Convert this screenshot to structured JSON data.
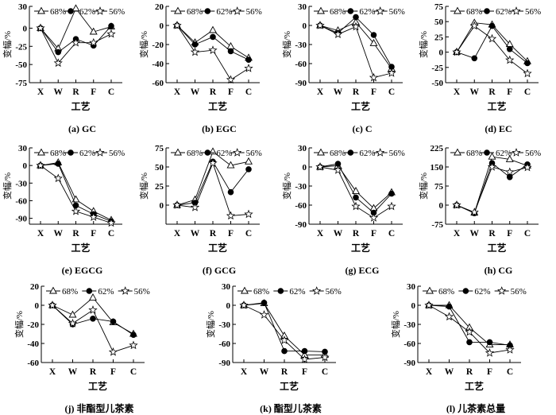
{
  "figure": {
    "legend": [
      "68%",
      "62%",
      "56%"
    ],
    "xlabel": "工艺",
    "ylabel": "变幅/%",
    "categories": [
      "X",
      "W",
      "R",
      "F",
      "C"
    ]
  },
  "chart_data": [
    {
      "type": "line",
      "label": "(a)",
      "title": "GC",
      "ylim": [
        -75,
        30
      ],
      "yticks": [
        30,
        0,
        -25,
        -50,
        -75
      ],
      "series": [
        {
          "name": "68%",
          "values": [
            0,
            -28,
            27,
            -5,
            2
          ]
        },
        {
          "name": "62%",
          "values": [
            0,
            -33,
            -15,
            -24,
            3
          ]
        },
        {
          "name": "56%",
          "values": [
            0,
            -48,
            -20,
            -20,
            -8
          ]
        }
      ]
    },
    {
      "type": "line",
      "label": "(b)",
      "title": "EGC",
      "ylim": [
        -60,
        20
      ],
      "yticks": [
        20,
        0,
        -20,
        -40,
        -60
      ],
      "series": [
        {
          "name": "68%",
          "values": [
            0,
            -18,
            -5,
            -22,
            -34
          ]
        },
        {
          "name": "62%",
          "values": [
            0,
            -20,
            -12,
            -27,
            -36
          ]
        },
        {
          "name": "56%",
          "values": [
            0,
            -28,
            -26,
            -57,
            -45
          ]
        }
      ]
    },
    {
      "type": "line",
      "label": "(c)",
      "title": "C",
      "ylim": [
        -90,
        30
      ],
      "yticks": [
        30,
        0,
        -30,
        -60,
        -90
      ],
      "series": [
        {
          "name": "68%",
          "values": [
            0,
            -8,
            5,
            -28,
            -68
          ]
        },
        {
          "name": "62%",
          "values": [
            0,
            -12,
            13,
            -15,
            -65
          ]
        },
        {
          "name": "56%",
          "values": [
            0,
            -14,
            -2,
            -82,
            -75
          ]
        }
      ]
    },
    {
      "type": "line",
      "label": "(d)",
      "title": "EC",
      "ylim": [
        -50,
        75
      ],
      "yticks": [
        75,
        50,
        25,
        0,
        -25,
        -50
      ],
      "series": [
        {
          "name": "68%",
          "values": [
            0,
            48,
            45,
            13,
            -15
          ]
        },
        {
          "name": "62%",
          "values": [
            0,
            -10,
            43,
            5,
            -18
          ]
        },
        {
          "name": "56%",
          "values": [
            0,
            43,
            22,
            -13,
            -35
          ]
        }
      ]
    },
    {
      "type": "line",
      "label": "(e)",
      "title": "EGCG",
      "ylim": [
        -100,
        30
      ],
      "yticks": [
        30,
        0,
        -30,
        -60,
        -90
      ],
      "series": [
        {
          "name": "68%",
          "values": [
            0,
            5,
            -58,
            -78,
            -93
          ]
        },
        {
          "name": "62%",
          "values": [
            0,
            3,
            -68,
            -83,
            -95
          ]
        },
        {
          "name": "56%",
          "values": [
            0,
            -22,
            -78,
            -88,
            -98
          ]
        }
      ]
    },
    {
      "type": "line",
      "label": "(f)",
      "title": "GCG",
      "ylim": [
        -25,
        75
      ],
      "yticks": [
        75,
        50,
        25,
        0
      ],
      "series": [
        {
          "name": "68%",
          "values": [
            0,
            7,
            70,
            52,
            57
          ]
        },
        {
          "name": "62%",
          "values": [
            0,
            3,
            57,
            17,
            47
          ]
        },
        {
          "name": "56%",
          "values": [
            0,
            -3,
            55,
            -14,
            -12
          ]
        }
      ]
    },
    {
      "type": "line",
      "label": "(g)",
      "title": "ECG",
      "ylim": [
        -90,
        30
      ],
      "yticks": [
        30,
        0,
        -30,
        -60,
        -90
      ],
      "series": [
        {
          "name": "68%",
          "values": [
            0,
            2,
            -38,
            -65,
            -40
          ]
        },
        {
          "name": "62%",
          "values": [
            0,
            5,
            -48,
            -72,
            -42
          ]
        },
        {
          "name": "56%",
          "values": [
            0,
            -5,
            -62,
            -80,
            -62
          ]
        }
      ]
    },
    {
      "type": "line",
      "label": "(h)",
      "title": "CG",
      "ylim": [
        -75,
        225
      ],
      "yticks": [
        225,
        150,
        75,
        0,
        -75
      ],
      "series": [
        {
          "name": "68%",
          "values": [
            0,
            -30,
            190,
            180,
            155
          ]
        },
        {
          "name": "62%",
          "values": [
            0,
            -32,
            165,
            110,
            160
          ]
        },
        {
          "name": "56%",
          "values": [
            0,
            -28,
            150,
            130,
            148
          ]
        }
      ]
    },
    {
      "type": "line",
      "label": "(j)",
      "title": "非酯型儿茶素",
      "ylim": [
        -60,
        20
      ],
      "yticks": [
        20,
        0,
        -20,
        -40,
        -60
      ],
      "series": [
        {
          "name": "68%",
          "values": [
            0,
            -10,
            8,
            -18,
            -30
          ]
        },
        {
          "name": "62%",
          "values": [
            0,
            -20,
            -14,
            -17,
            -31
          ]
        },
        {
          "name": "56%",
          "values": [
            0,
            -19,
            -5,
            -49,
            -42
          ]
        }
      ]
    },
    {
      "type": "line",
      "label": "(k)",
      "title": "酯型儿茶素",
      "ylim": [
        -90,
        30
      ],
      "yticks": [
        30,
        0,
        -30,
        -60,
        -90
      ],
      "series": [
        {
          "name": "68%",
          "values": [
            0,
            3,
            -48,
            -78,
            -78
          ]
        },
        {
          "name": "62%",
          "values": [
            0,
            4,
            -72,
            -72,
            -73
          ]
        },
        {
          "name": "56%",
          "values": [
            0,
            -15,
            -55,
            -85,
            -82
          ]
        }
      ]
    },
    {
      "type": "line",
      "label": "(l)",
      "title": "儿茶素总量",
      "ylim": [
        -90,
        30
      ],
      "yticks": [
        30,
        0,
        -30,
        -60,
        -90
      ],
      "series": [
        {
          "name": "68%",
          "values": [
            0,
            0,
            -35,
            -62,
            -62
          ]
        },
        {
          "name": "62%",
          "values": [
            0,
            -2,
            -58,
            -58,
            -63
          ]
        },
        {
          "name": "56%",
          "values": [
            0,
            -18,
            -42,
            -75,
            -70
          ]
        }
      ]
    }
  ]
}
